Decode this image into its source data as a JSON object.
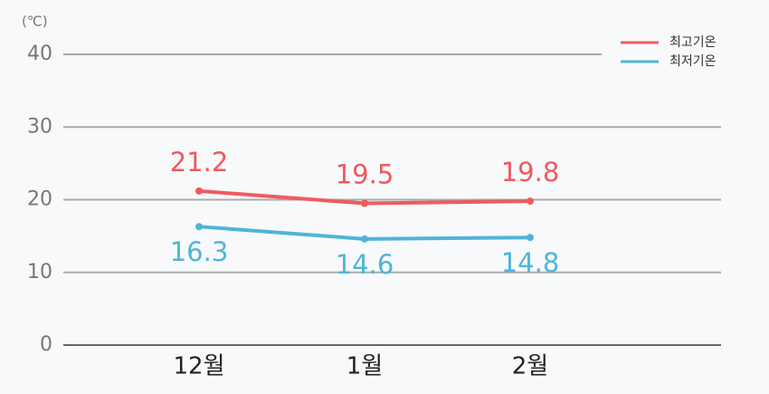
{
  "chart_data": {
    "type": "line",
    "unit": "(℃)",
    "categories": [
      "12월",
      "1월",
      "2월"
    ],
    "series": [
      {
        "name": "최고기온",
        "color": "#f05a5e",
        "values": [
          21.2,
          19.5,
          19.8
        ]
      },
      {
        "name": "최저기온",
        "color": "#4fb4d8",
        "values": [
          16.3,
          14.6,
          14.8
        ]
      }
    ],
    "ylim": [
      0,
      40
    ],
    "yticks": [
      0,
      10,
      20,
      30,
      40
    ],
    "grid": true,
    "legend": "upper right"
  }
}
